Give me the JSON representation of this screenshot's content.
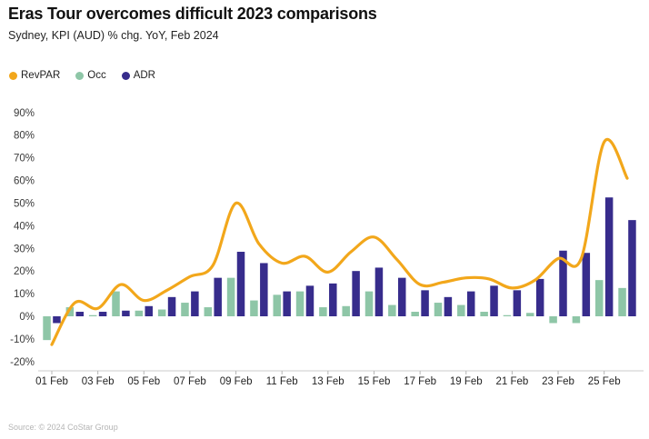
{
  "header": {
    "title": "Eras Tour overcomes difficult 2023 comparisons",
    "subtitle": "Sydney, KPI (AUD) % chg. YoY, Feb 2024"
  },
  "legend": {
    "items": [
      {
        "label": "RevPAR",
        "color": "#F2A71B",
        "marker": "dot"
      },
      {
        "label": "Occ",
        "color": "#8EC6A7",
        "marker": "dot"
      },
      {
        "label": "ADR",
        "color": "#372C8C",
        "marker": "dot"
      }
    ]
  },
  "footer": {
    "source": "Source: © 2024 CoStar Group"
  },
  "chart_data": {
    "type": "bar",
    "subtype": "grouped bars with smoothed line overlay",
    "title": "Eras Tour overcomes difficult 2023 comparisons",
    "subtitle": "Sydney, KPI (AUD) % chg. YoY, Feb 2024",
    "categories": [
      "01 Feb",
      "02 Feb",
      "03 Feb",
      "04 Feb",
      "05 Feb",
      "06 Feb",
      "07 Feb",
      "08 Feb",
      "09 Feb",
      "10 Feb",
      "11 Feb",
      "12 Feb",
      "13 Feb",
      "14 Feb",
      "15 Feb",
      "16 Feb",
      "17 Feb",
      "18 Feb",
      "19 Feb",
      "20 Feb",
      "21 Feb",
      "22 Feb",
      "23 Feb",
      "24 Feb",
      "25 Feb",
      "26 Feb"
    ],
    "series": [
      {
        "name": "RevPAR",
        "type": "line",
        "color": "#F2A71B",
        "values": [
          -12.5,
          6,
          3.5,
          14,
          7,
          11.5,
          17.5,
          22.5,
          50,
          32,
          23.5,
          26.5,
          19.5,
          28.5,
          35,
          25,
          14,
          15,
          17,
          16.5,
          12.5,
          16,
          25.5,
          25.5,
          77,
          61
        ]
      },
      {
        "name": "Occ",
        "type": "bar",
        "color": "#8EC6A7",
        "values": [
          -10.5,
          4,
          0.5,
          11,
          2.5,
          3,
          6,
          4,
          17,
          7,
          9.5,
          11,
          4,
          4.5,
          11,
          5,
          2,
          6,
          5,
          2,
          0.5,
          1.5,
          -3,
          -3,
          16,
          12.5
        ]
      },
      {
        "name": "ADR",
        "type": "bar",
        "color": "#372C8C",
        "values": [
          -3,
          2,
          2,
          2.5,
          4.5,
          8.5,
          11,
          17,
          28.5,
          23.5,
          11,
          13.5,
          14.5,
          20,
          21.5,
          17,
          11.5,
          8.5,
          11,
          13.5,
          11.5,
          16.5,
          29,
          28,
          52.5,
          42.5
        ]
      }
    ],
    "ylim": [
      -20,
      90
    ],
    "y_ticks": [
      90,
      80,
      70,
      60,
      50,
      40,
      30,
      20,
      10,
      0,
      -10,
      -20
    ],
    "y_tick_labels": [
      "90%",
      "80%",
      "70%",
      "60%",
      "50%",
      "40%",
      "30%",
      "20%",
      "10%",
      "0%",
      "-10%",
      "-20%"
    ],
    "x_tick_labels": [
      "01 Feb",
      "03 Feb",
      "05 Feb",
      "07 Feb",
      "09 Feb",
      "11 Feb",
      "13 Feb",
      "15 Feb",
      "17 Feb",
      "19 Feb",
      "21 Feb",
      "23 Feb",
      "25 Feb"
    ],
    "grid": false,
    "legend_position": "top-left"
  }
}
